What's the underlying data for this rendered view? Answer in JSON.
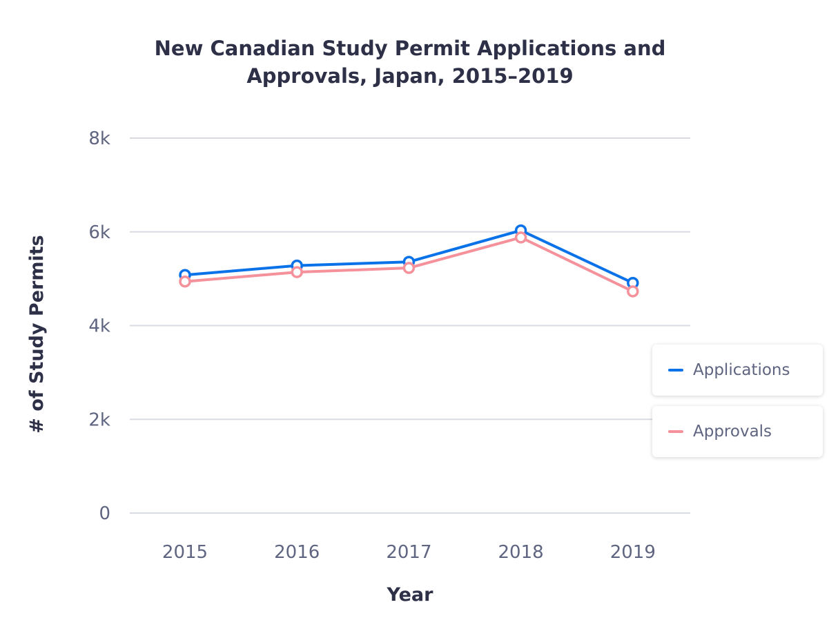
{
  "chart_data": {
    "type": "line",
    "title": [
      "New Canadian Study Permit Applications and",
      "Approvals, Japan, 2015–2019"
    ],
    "xlabel": "Year",
    "ylabel": "# of Study Permits",
    "categories": [
      "2015",
      "2016",
      "2017",
      "2018",
      "2019"
    ],
    "ylim": [
      0,
      8000
    ],
    "yticks": [
      0,
      2000,
      4000,
      6000,
      8000
    ],
    "ytick_labels": [
      "0",
      "2k",
      "4k",
      "6k",
      "8k"
    ],
    "grid": true,
    "legend_position": "right",
    "series": [
      {
        "name": "Applications",
        "color": "#0a72e8",
        "values": [
          5080,
          5280,
          5360,
          6030,
          4910
        ]
      },
      {
        "name": "Approvals",
        "color": "#f4919a",
        "values": [
          4940,
          5140,
          5230,
          5880,
          4730
        ]
      }
    ]
  }
}
